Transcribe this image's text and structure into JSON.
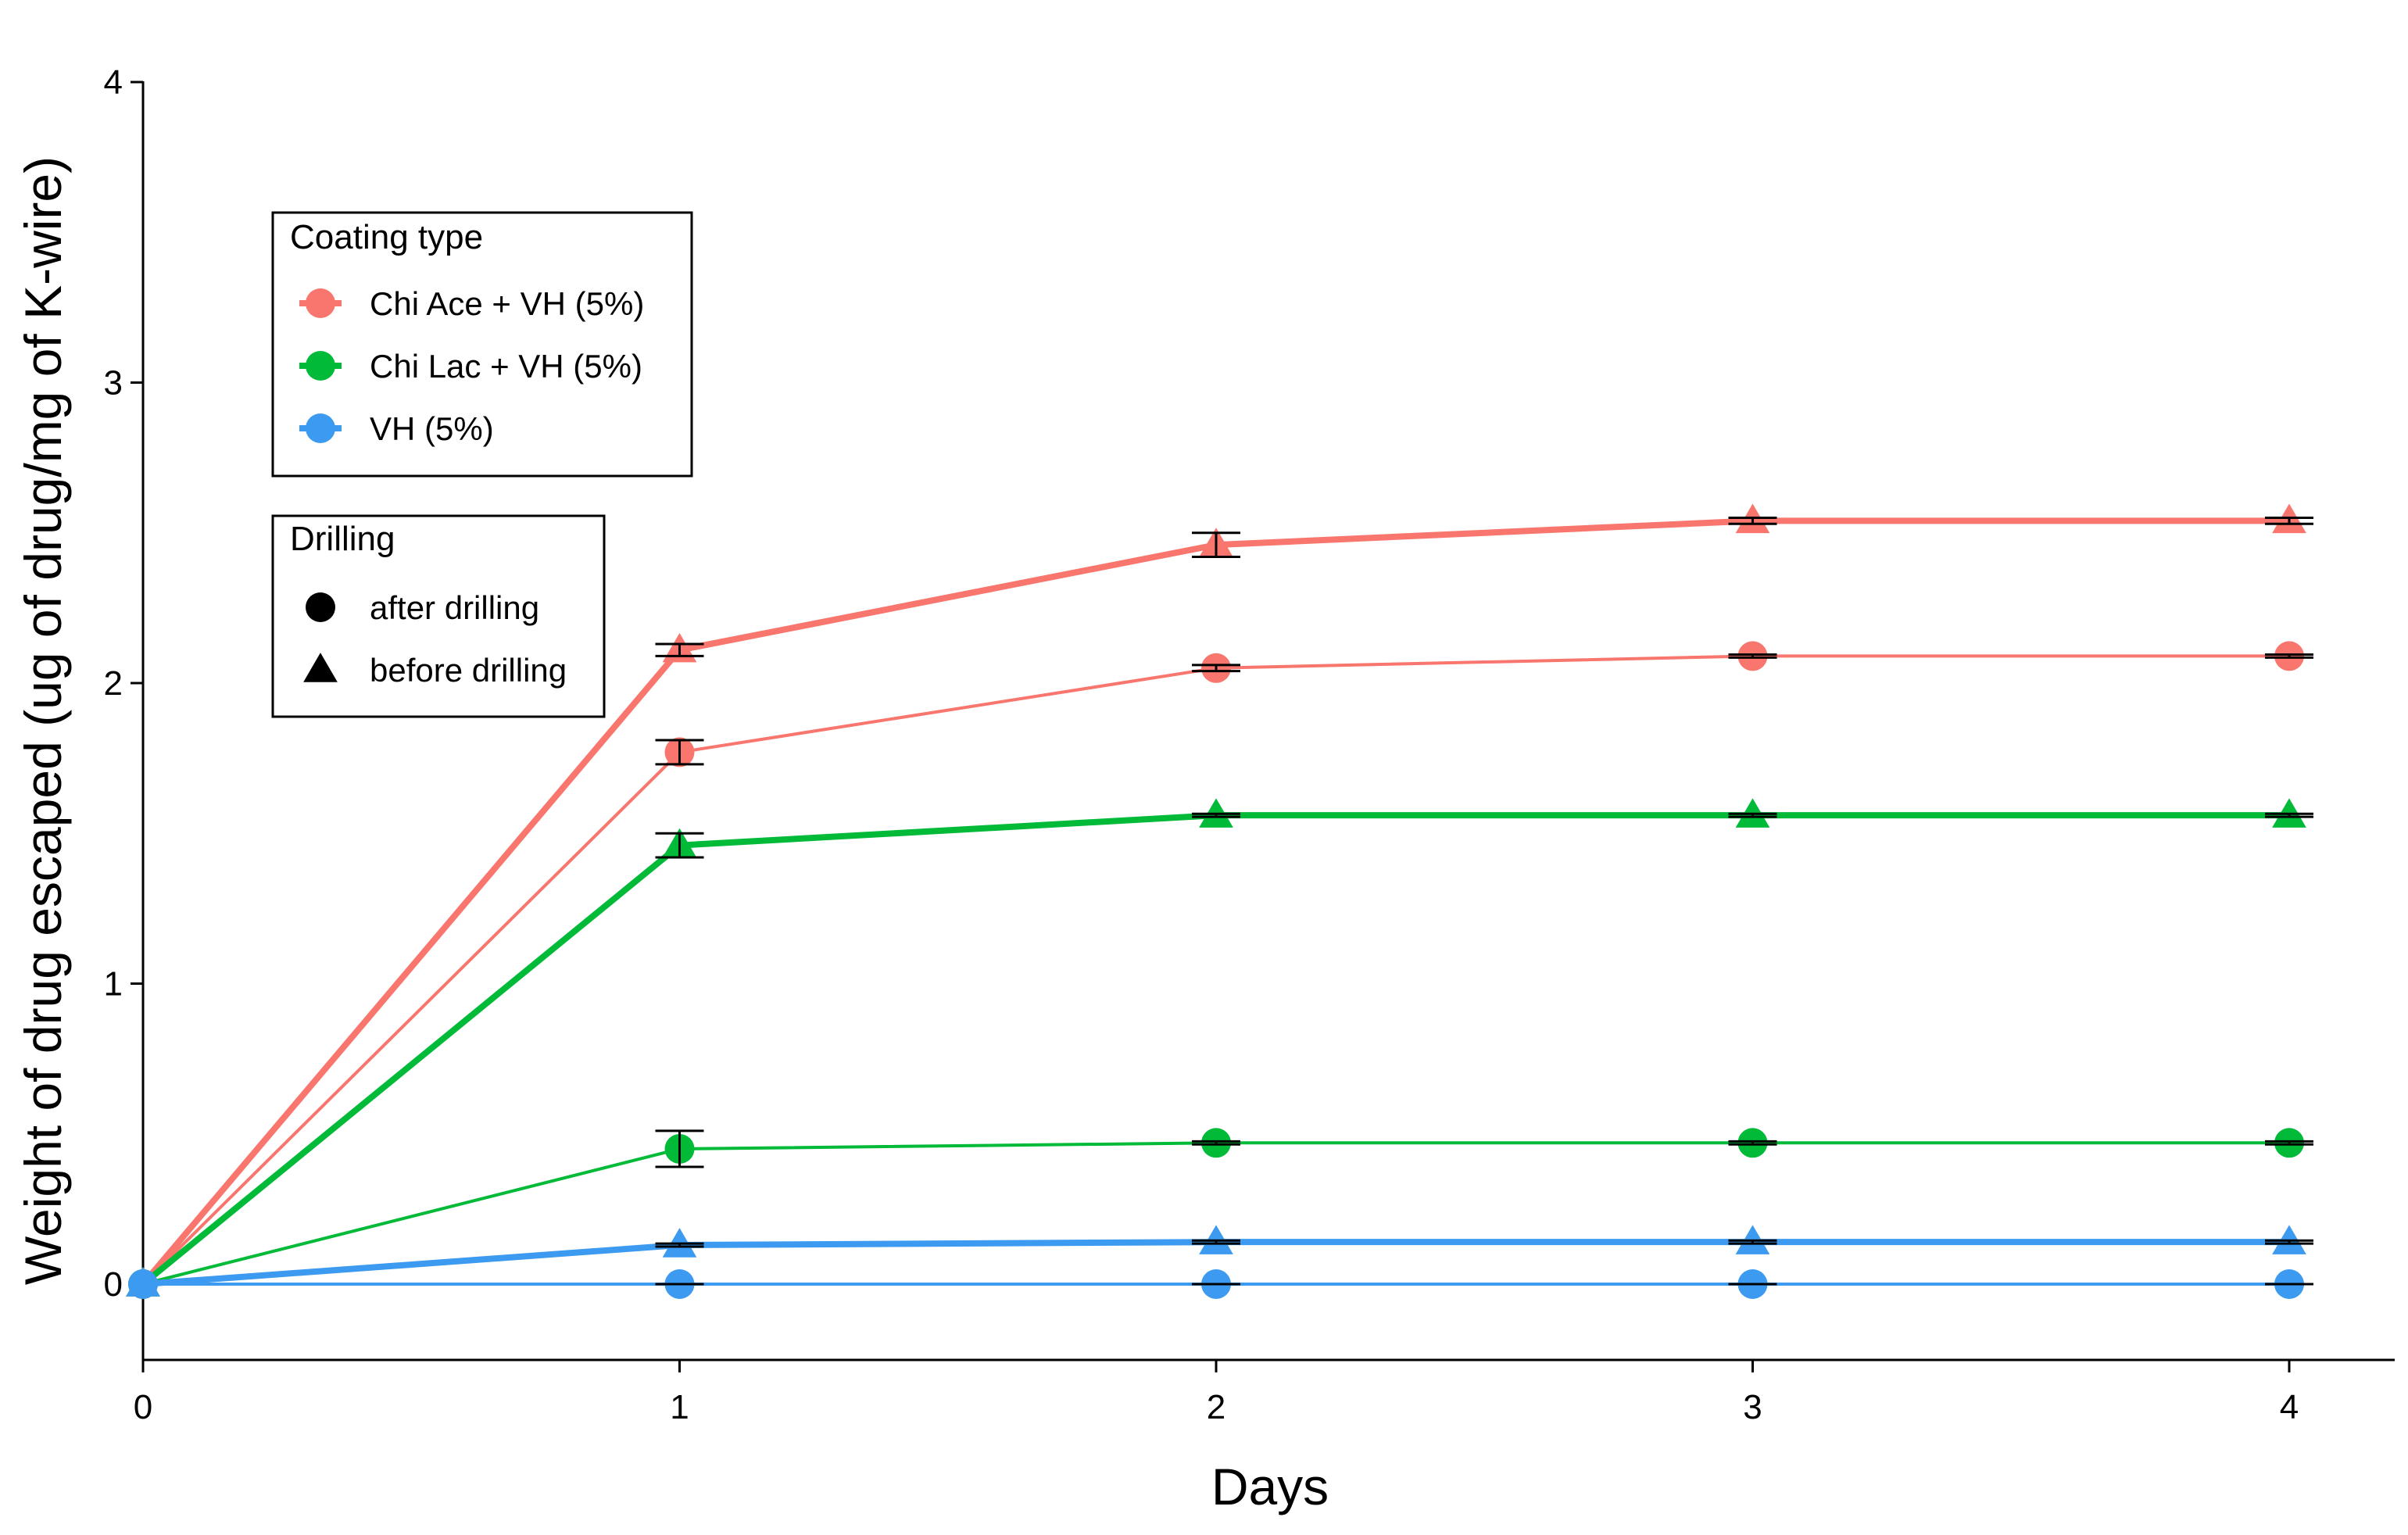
{
  "chart_data": {
    "type": "line",
    "title": "",
    "xlabel": "Days",
    "ylabel": "Weight of drug escaped (ug of drug/mg of K-wire)",
    "xlim": [
      0,
      4.2
    ],
    "ylim": [
      -0.25,
      4
    ],
    "x_ticks": [
      0,
      1,
      2,
      3,
      4
    ],
    "y_ticks": [
      0,
      1,
      2,
      3,
      4
    ],
    "grid": false,
    "x": [
      0,
      1,
      2,
      3,
      4
    ],
    "colors": {
      "Chi Ace + VH (5%)": "#F8766D",
      "Chi Lac + VH (5%)": "#00BA38",
      "VH (5%)": "#3C9AF0"
    },
    "series": [
      {
        "name": "Chi Ace + VH (5%) - before drilling",
        "coating": "Chi Ace + VH (5%)",
        "drilling": "before drilling",
        "values": [
          0,
          2.11,
          2.46,
          2.54,
          2.54
        ],
        "errors": [
          0,
          0.02,
          0.04,
          0.01,
          0.01
        ]
      },
      {
        "name": "Chi Ace + VH (5%) - after drilling",
        "coating": "Chi Ace + VH (5%)",
        "drilling": "after drilling",
        "values": [
          0,
          1.77,
          2.05,
          2.09,
          2.09
        ],
        "errors": [
          0,
          0.04,
          0.01,
          0.005,
          0.005
        ]
      },
      {
        "name": "Chi Lac + VH (5%) - before drilling",
        "coating": "Chi Lac + VH (5%)",
        "drilling": "before drilling",
        "values": [
          0,
          1.46,
          1.56,
          1.56,
          1.56
        ],
        "errors": [
          0,
          0.04,
          0.005,
          0.005,
          0.005
        ]
      },
      {
        "name": "Chi Lac + VH (5%) - after drilling",
        "coating": "Chi Lac + VH (5%)",
        "drilling": "after drilling",
        "values": [
          0,
          0.45,
          0.47,
          0.47,
          0.47
        ],
        "errors": [
          0,
          0.06,
          0.005,
          0.005,
          0.005
        ]
      },
      {
        "name": "VH (5%) - before drilling",
        "coating": "VH (5%)",
        "drilling": "before drilling",
        "values": [
          0,
          0.13,
          0.14,
          0.14,
          0.14
        ],
        "errors": [
          0,
          0.005,
          0.005,
          0.005,
          0.005
        ]
      },
      {
        "name": "VH (5%) - after drilling",
        "coating": "VH (5%)",
        "drilling": "after drilling",
        "values": [
          0,
          0,
          0,
          0,
          0
        ],
        "errors": [
          0,
          0,
          0,
          0,
          0
        ]
      }
    ],
    "legend": {
      "placement": "top-left",
      "coating": {
        "title": "Coating type",
        "items": [
          "Chi Ace + VH (5%)",
          "Chi Lac + VH (5%)",
          "VH (5%)"
        ]
      },
      "drilling": {
        "title": "Drilling",
        "items": [
          "after drilling",
          "before drilling"
        ]
      }
    }
  }
}
